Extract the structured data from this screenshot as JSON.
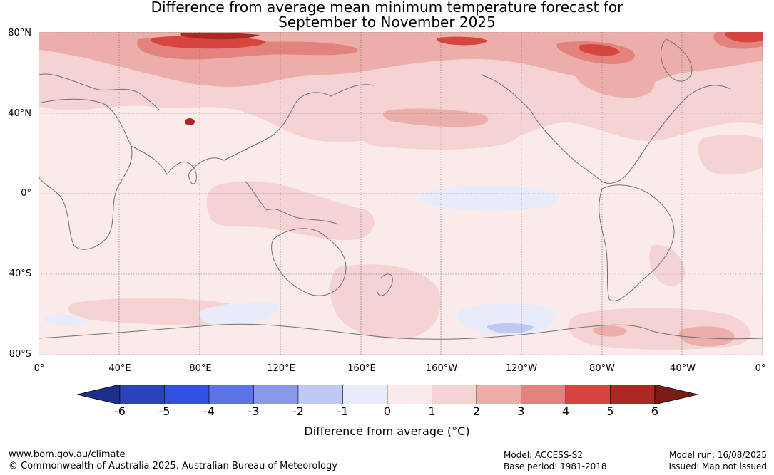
{
  "title": {
    "line1": "Difference from average mean minimum temperature forecast for",
    "line2": "September to November 2025"
  },
  "map": {
    "lat_labels": [
      "80°N",
      "40°N",
      "0°",
      "40°S",
      "80°S"
    ],
    "lon_labels": [
      "0°",
      "40°E",
      "80°E",
      "120°E",
      "160°E",
      "160°W",
      "120°W",
      "80°W",
      "40°W",
      "0°"
    ],
    "colors": {
      "lvl_-1_0": "#e8ecfa",
      "lvl_0_1": "#fbeaea",
      "lvl_1_2": "#f4d3d2",
      "lvl_2_3": "#ecaeaa",
      "lvl_3_4": "#e4827e",
      "lvl_4_5": "#d6463f",
      "lvl_5_6": "#ac2823",
      "lvl_6p": "#7a1b17",
      "coast": "#707070"
    }
  },
  "colorbar": {
    "ticks": [
      "-6",
      "-5",
      "-4",
      "-3",
      "-2",
      "-1",
      "0",
      "1",
      "2",
      "3",
      "4",
      "5",
      "6"
    ],
    "colors": [
      "#1b2f8c",
      "#2a43b8",
      "#3251e0",
      "#5b74e6",
      "#8899ec",
      "#c0c8f3",
      "#e8ecfa",
      "#fbeaea",
      "#f4d3d2",
      "#ecaeaa",
      "#e4827e",
      "#d6463f",
      "#ac2823",
      "#7a1b17"
    ],
    "label": "Difference from average (°C)"
  },
  "footer": {
    "website": "www.bom.gov.au/climate",
    "copyright": "© Commonwealth of Australia 2025, Australian Bureau of Meteorology",
    "model": "Model: ACCESS-S2",
    "base_period": "Base period: 1981-2018",
    "model_run": "Model run: 16/08/2025",
    "issued": "Issued: Map not issued"
  }
}
